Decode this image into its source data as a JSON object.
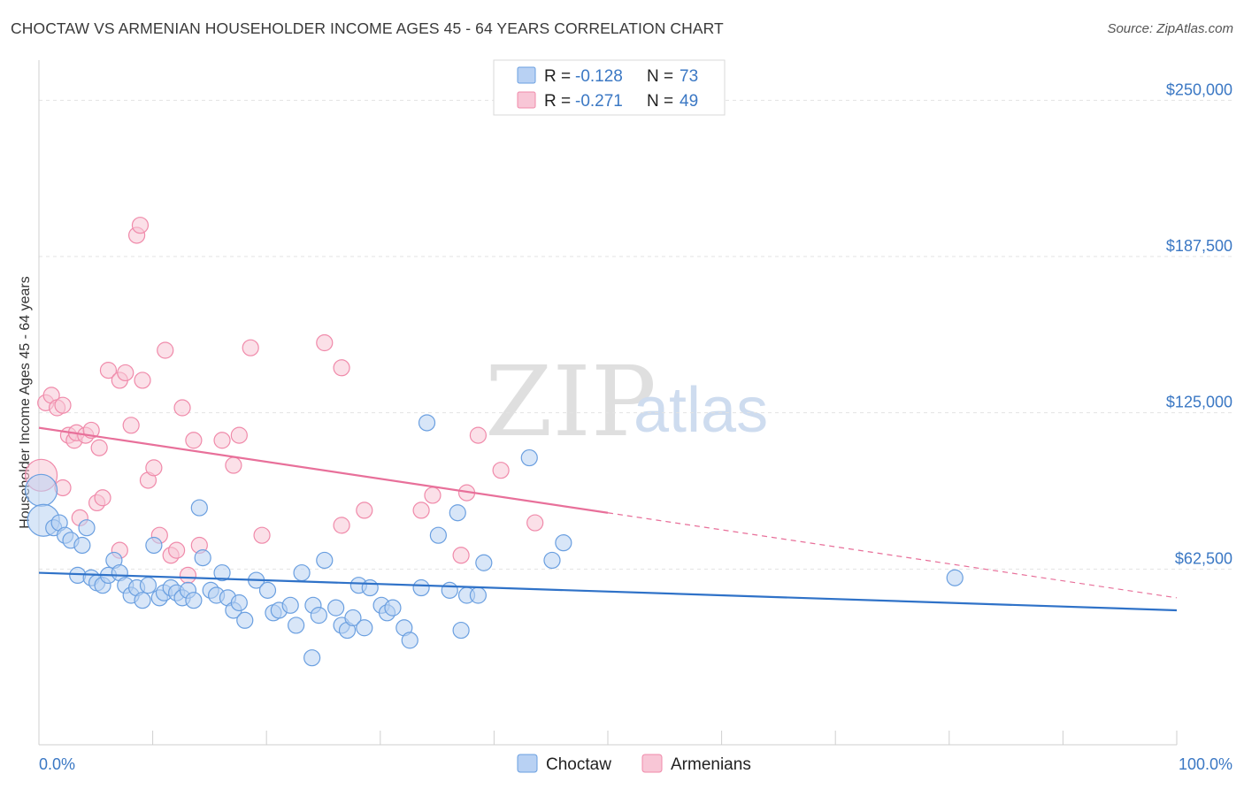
{
  "header": {
    "title": "CHOCTAW VS ARMENIAN HOUSEHOLDER INCOME AGES 45 - 64 YEARS CORRELATION CHART",
    "source": "Source: ZipAtlas.com"
  },
  "watermark": {
    "zip": "ZIP",
    "atlas": "atlas"
  },
  "legend": {
    "items": [
      {
        "r_label": "R =",
        "r_value": "-0.128",
        "n_label": "N =",
        "n_value": "73"
      },
      {
        "r_label": "R =",
        "r_value": "-0.271",
        "n_label": "N =",
        "n_value": "49"
      }
    ]
  },
  "bottom_legend": {
    "series1": "Choctaw",
    "series2": "Armenians"
  },
  "chart_data": {
    "type": "scatter",
    "title": "CHOCTAW VS ARMENIAN HOUSEHOLDER INCOME AGES 45 - 64 YEARS CORRELATION CHART",
    "ylabel": "Householder Income Ages 45 - 64 years",
    "xlim": [
      0,
      100
    ],
    "ylim": [
      0,
      262500
    ],
    "x_tick_labels": [
      "0.0%",
      "100.0%"
    ],
    "y_ticks": [
      62500,
      125000,
      187500,
      250000
    ],
    "y_tick_labels": [
      "$62,500",
      "$125,000",
      "$187,500",
      "$250,000"
    ],
    "grid": true,
    "legend_position": "top-center",
    "colors": {
      "choctaw": "#6a9fe0",
      "armenians": "#f08aaa",
      "choctaw_line": "#2f72c8",
      "armenians_line": "#e8709a"
    },
    "series": [
      {
        "name": "Choctaw",
        "trend": {
          "x": [
            0,
            100
          ],
          "y": [
            61000,
            46000
          ]
        },
        "points": [
          [
            0.2,
            94000
          ],
          [
            0.4,
            82000
          ],
          [
            1.3,
            79000
          ],
          [
            1.8,
            81000
          ],
          [
            2.3,
            76000
          ],
          [
            2.8,
            74000
          ],
          [
            3.8,
            72000
          ],
          [
            4.2,
            79000
          ],
          [
            3.4,
            60000
          ],
          [
            4.6,
            59000
          ],
          [
            5.1,
            57000
          ],
          [
            5.6,
            56000
          ],
          [
            6.1,
            60000
          ],
          [
            6.6,
            66000
          ],
          [
            7.1,
            61000
          ],
          [
            7.6,
            56000
          ],
          [
            8.1,
            52000
          ],
          [
            8.6,
            55000
          ],
          [
            9.1,
            50000
          ],
          [
            9.6,
            56000
          ],
          [
            10.1,
            72000
          ],
          [
            10.6,
            51000
          ],
          [
            11.0,
            53000
          ],
          [
            11.6,
            55000
          ],
          [
            12.1,
            53000
          ],
          [
            12.6,
            51000
          ],
          [
            13.1,
            54000
          ],
          [
            13.6,
            50000
          ],
          [
            14.1,
            87000
          ],
          [
            14.4,
            67000
          ],
          [
            15.1,
            54000
          ],
          [
            15.6,
            52000
          ],
          [
            16.1,
            61000
          ],
          [
            16.6,
            51000
          ],
          [
            17.1,
            46000
          ],
          [
            17.6,
            49000
          ],
          [
            18.1,
            42000
          ],
          [
            19.1,
            58000
          ],
          [
            20.1,
            54000
          ],
          [
            20.6,
            45000
          ],
          [
            21.1,
            46000
          ],
          [
            22.1,
            48000
          ],
          [
            22.6,
            40000
          ],
          [
            23.1,
            61000
          ],
          [
            24.1,
            48000
          ],
          [
            24.6,
            44000
          ],
          [
            25.1,
            66000
          ],
          [
            26.1,
            47000
          ],
          [
            26.6,
            40000
          ],
          [
            27.1,
            38000
          ],
          [
            27.6,
            43000
          ],
          [
            28.1,
            56000
          ],
          [
            28.6,
            39000
          ],
          [
            29.1,
            55000
          ],
          [
            30.1,
            48000
          ],
          [
            30.6,
            45000
          ],
          [
            31.1,
            47000
          ],
          [
            32.1,
            39000
          ],
          [
            32.6,
            34000
          ],
          [
            33.6,
            55000
          ],
          [
            34.1,
            121000
          ],
          [
            35.1,
            76000
          ],
          [
            36.1,
            54000
          ],
          [
            37.1,
            38000
          ],
          [
            36.8,
            85000
          ],
          [
            37.6,
            52000
          ],
          [
            38.6,
            52000
          ],
          [
            39.1,
            65000
          ],
          [
            43.1,
            107000
          ],
          [
            45.1,
            66000
          ],
          [
            46.1,
            73000
          ],
          [
            80.5,
            59000
          ],
          [
            24.0,
            27000
          ]
        ]
      },
      {
        "name": "Armenians",
        "trend": {
          "x": [
            0,
            50
          ],
          "y": [
            119000,
            85000
          ]
        },
        "trend_dashed": {
          "x": [
            50,
            100
          ],
          "y": [
            85000,
            51000
          ]
        },
        "points": [
          [
            0.2,
            100000
          ],
          [
            0.6,
            129000
          ],
          [
            1.1,
            132000
          ],
          [
            1.6,
            127000
          ],
          [
            2.1,
            128000
          ],
          [
            2.1,
            95000
          ],
          [
            2.6,
            116000
          ],
          [
            3.1,
            114000
          ],
          [
            3.3,
            117000
          ],
          [
            3.6,
            83000
          ],
          [
            4.1,
            116000
          ],
          [
            4.6,
            118000
          ],
          [
            5.1,
            89000
          ],
          [
            5.6,
            91000
          ],
          [
            5.3,
            111000
          ],
          [
            6.1,
            142000
          ],
          [
            7.1,
            138000
          ],
          [
            7.6,
            141000
          ],
          [
            8.1,
            120000
          ],
          [
            8.6,
            196000
          ],
          [
            8.9,
            200000
          ],
          [
            9.1,
            138000
          ],
          [
            9.6,
            98000
          ],
          [
            10.1,
            103000
          ],
          [
            10.6,
            76000
          ],
          [
            11.1,
            150000
          ],
          [
            11.6,
            68000
          ],
          [
            12.1,
            70000
          ],
          [
            12.6,
            127000
          ],
          [
            13.1,
            60000
          ],
          [
            13.6,
            114000
          ],
          [
            14.1,
            72000
          ],
          [
            16.1,
            114000
          ],
          [
            17.1,
            104000
          ],
          [
            17.6,
            116000
          ],
          [
            18.6,
            151000
          ],
          [
            19.6,
            76000
          ],
          [
            25.1,
            153000
          ],
          [
            26.6,
            143000
          ],
          [
            26.6,
            80000
          ],
          [
            28.6,
            86000
          ],
          [
            33.6,
            86000
          ],
          [
            34.6,
            92000
          ],
          [
            37.1,
            68000
          ],
          [
            37.6,
            93000
          ],
          [
            38.6,
            116000
          ],
          [
            40.6,
            102000
          ],
          [
            43.6,
            81000
          ],
          [
            7.1,
            70000
          ]
        ]
      }
    ]
  }
}
